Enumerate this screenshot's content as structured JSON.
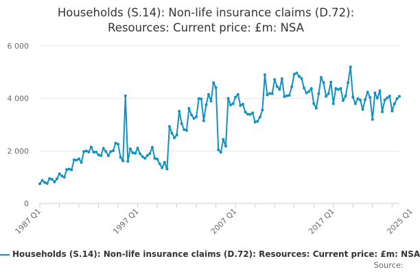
{
  "title_line1": "Households (S.14): Non-life insurance claims (D.72):",
  "title_line2": "Resources: Current price: £m: NSA",
  "legend_label": "Households (S.14): Non-life insurance claims (D.72): Resources: Current price: £m: NSA",
  "source_label": "Source:",
  "series_color": "#0f8fc2",
  "grid_color": "#e6e6e6",
  "chart_data": {
    "type": "line",
    "title": "Households (S.14): Non-life insurance claims (D.72): Resources: Current price: £m: NSA",
    "xlabel": "",
    "ylabel": "",
    "ylim": [
      0,
      6000
    ],
    "y_ticks": [
      0,
      2000,
      4000,
      6000
    ],
    "y_tick_labels": [
      "0",
      "2 000",
      "4 000",
      "6 000"
    ],
    "x_ticks": [
      "1987 Q1",
      "1997 Q1",
      "2007 Q1",
      "2017 Q1",
      "2025 Q1"
    ],
    "grid": "horizontal",
    "legend_position": "bottom",
    "start_period": "1987 Q1",
    "series": [
      {
        "name": "Households (S.14): Non-life insurance claims (D.72): Resources: Current price: £m: NSA",
        "values": [
          750,
          880,
          800,
          760,
          950,
          920,
          820,
          940,
          1130,
          1050,
          1000,
          1290,
          1310,
          1280,
          1660,
          1650,
          1700,
          1560,
          1980,
          2000,
          1960,
          2150,
          1950,
          1960,
          1850,
          1820,
          2100,
          1980,
          1820,
          1980,
          2010,
          2300,
          2260,
          1760,
          1620,
          4100,
          1600,
          2080,
          1930,
          1910,
          2110,
          1890,
          1780,
          1720,
          1830,
          1900,
          2140,
          1720,
          1690,
          1510,
          1360,
          1570,
          1310,
          2930,
          2680,
          2500,
          2610,
          3510,
          3040,
          2810,
          2780,
          3620,
          3370,
          3240,
          3300,
          3990,
          3980,
          3150,
          3760,
          4150,
          3900,
          4600,
          4410,
          2040,
          1950,
          2440,
          2180,
          4000,
          3750,
          3800,
          4050,
          4150,
          3730,
          3780,
          3480,
          3400,
          3390,
          3450,
          3100,
          3130,
          3290,
          3560,
          4900,
          4130,
          4190,
          4180,
          4720,
          4450,
          4340,
          4750,
          4070,
          4100,
          4120,
          4440,
          4920,
          4970,
          4840,
          4760,
          4400,
          4210,
          4260,
          4380,
          3800,
          3630,
          4180,
          4800,
          4600,
          4080,
          4180,
          4620,
          3800,
          4380,
          4340,
          4380,
          3920,
          4090,
          4600,
          5200,
          4050,
          3800,
          3990,
          3940,
          3580,
          3950,
          4240,
          4040,
          3200,
          4210,
          4010,
          4290,
          3490,
          3940,
          4020,
          4090,
          3520,
          3800,
          3990,
          4080
        ]
      }
    ]
  }
}
